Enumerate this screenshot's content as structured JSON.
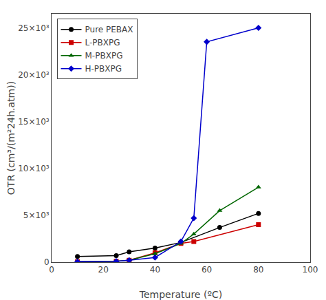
{
  "chart_data": {
    "type": "line",
    "xlabel": "Temperature (ºC)",
    "ylabel": "OTR (cm³/(m²24h.atm))",
    "series": [
      {
        "name": "Pure PEBAX",
        "color": "#000000",
        "marker": "circle",
        "x": [
          10,
          25,
          30,
          40,
          50,
          65,
          80
        ],
        "values": [
          600,
          700,
          1100,
          1500,
          2100,
          3700,
          5200
        ]
      },
      {
        "name": "L-PBXPG",
        "color": "#cc0000",
        "marker": "square",
        "x": [
          10,
          25,
          30,
          40,
          50,
          55,
          80
        ],
        "values": [
          50,
          100,
          200,
          1000,
          2000,
          2200,
          4000
        ]
      },
      {
        "name": "M-PBXPG",
        "color": "#006600",
        "marker": "triangle-up",
        "x": [
          10,
          25,
          30,
          40,
          50,
          55,
          65,
          80
        ],
        "values": [
          50,
          100,
          200,
          900,
          2000,
          3000,
          5500,
          8000
        ]
      },
      {
        "name": "H-PBXPG",
        "color": "#0000cc",
        "marker": "diamond",
        "x": [
          10,
          25,
          30,
          40,
          50,
          55,
          60,
          80
        ],
        "values": [
          50,
          100,
          200,
          500,
          2200,
          4700,
          23500,
          25000
        ]
      }
    ],
    "xlim": [
      0,
      100
    ],
    "xticks": [
      0,
      20,
      40,
      60,
      80,
      100
    ],
    "ylim": [
      0,
      26500
    ],
    "yticks": [
      0,
      {
        "value": 5000,
        "label": "5×10³"
      },
      {
        "value": 10000,
        "label": "10×10³"
      },
      {
        "value": 15000,
        "label": "15×10³"
      },
      {
        "value": 20000,
        "label": "20×10³"
      },
      {
        "value": 25000,
        "label": "25×10³"
      }
    ],
    "legend": "upper left",
    "grid": false
  }
}
